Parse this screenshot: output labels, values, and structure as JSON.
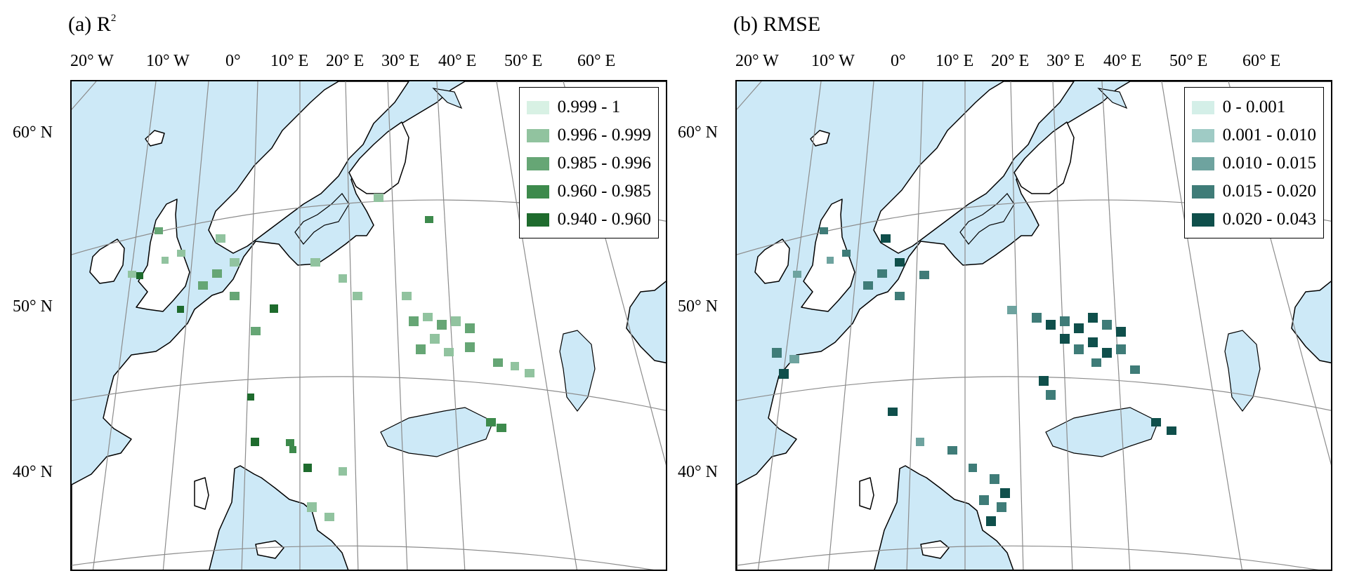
{
  "panels": [
    {
      "id": "a",
      "title_main": "(a) R",
      "title_sup": "2",
      "lon_labels": [
        "20° W",
        "10° W",
        "0°",
        "10° E",
        "20° E",
        "30° E",
        "40° E",
        "50° E",
        "60° E"
      ],
      "lat_labels": [
        "60° N",
        "50° N",
        "40° N"
      ],
      "legend": [
        {
          "label": "0.999 - 1",
          "color": "#d8f1e4"
        },
        {
          "label": "0.996 - 0.999",
          "color": "#91c39f"
        },
        {
          "label": "0.985 - 0.996",
          "color": "#66a675"
        },
        {
          "label": "0.960 - 0.985",
          "color": "#3d8a4c"
        },
        {
          "label": "0.940 - 0.960",
          "color": "#1e6b2d"
        }
      ]
    },
    {
      "id": "b",
      "title_main": "(b) RMSE",
      "title_sup": "",
      "lon_labels": [
        "20° W",
        "10° W",
        "0°",
        "10° E",
        "20° E",
        "30° E",
        "40° E",
        "50° E",
        "60° E"
      ],
      "lat_labels": [
        "60° N",
        "50° N",
        "40° N"
      ],
      "legend": [
        {
          "label": "0 - 0.001",
          "color": "#d4efe8"
        },
        {
          "label": "0.001 - 0.010",
          "color": "#9fcbc5"
        },
        {
          "label": "0.010 - 0.015",
          "color": "#6ea39f"
        },
        {
          "label": "0.015 - 0.020",
          "color": "#3f7c78"
        },
        {
          "label": "0.020 - 0.043",
          "color": "#0f4f4b"
        }
      ]
    }
  ],
  "colors": {
    "sea": "#cde9f7",
    "land": "#ffffff",
    "border": "#000000",
    "graticule": "#8c8c8c"
  }
}
